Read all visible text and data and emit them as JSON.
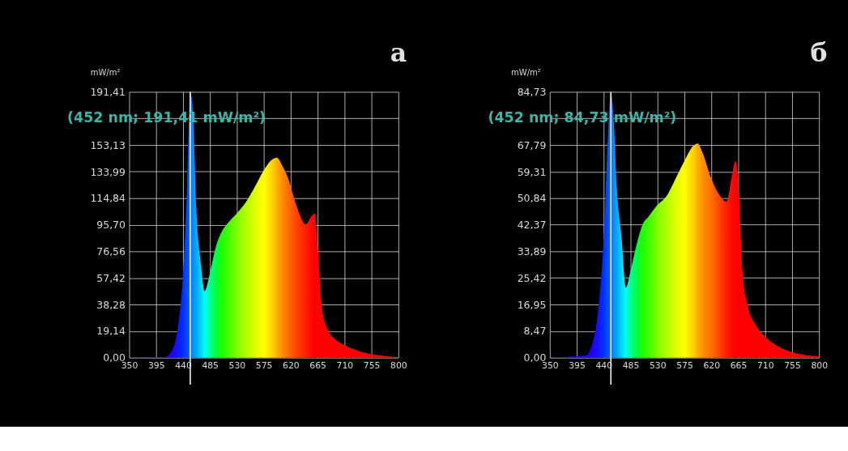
{
  "chart_data": [
    {
      "type": "area",
      "title": "а",
      "ylabel": "mW/m²",
      "xlim": [
        350,
        800
      ],
      "xticks": [
        350,
        395,
        440,
        485,
        530,
        575,
        620,
        665,
        710,
        755,
        800
      ],
      "ylim": [
        0,
        191.41
      ],
      "yticks": [
        {
          "value": 0,
          "label": "0,00"
        },
        {
          "value": 19.14,
          "label": "19,14"
        },
        {
          "value": 38.28,
          "label": "38,28"
        },
        {
          "value": 57.42,
          "label": "57,42"
        },
        {
          "value": 76.56,
          "label": "76,56"
        },
        {
          "value": 95.7,
          "label": "95,70"
        },
        {
          "value": 114.84,
          "label": "114,84"
        },
        {
          "value": 133.99,
          "label": "133,99"
        },
        {
          "value": 153.13,
          "label": "153,13"
        },
        {
          "value": 172.27,
          "label": null
        },
        {
          "value": 191.41,
          "label": "191,41"
        }
      ],
      "grid": true,
      "colors": [
        "#2000c0",
        "#2000ff",
        "#2000ff",
        "#1810ff",
        "#0030ff",
        "#0050ff",
        "#0070ff",
        "#0090ff",
        "#00a8ff",
        "#00d8ff",
        "#00ffff",
        "#00ff90",
        "#00ff40",
        "#20ff00",
        "#40ff00",
        "#80ff00",
        "#b0ff00",
        "#e0ff00",
        "#ffff00",
        "#ffd000",
        "#ffb000",
        "#ff9000",
        "#ff7000",
        "#ff4000",
        "#ff2000",
        "#ff0800",
        "#ff0000",
        "#ff0000",
        "#ff0000",
        "#ff0000",
        "#ff0000",
        "#ff0000",
        "#ff0000",
        "#ff0000",
        "#ff0000"
      ],
      "x": [
        350,
        410,
        420,
        430,
        440,
        447,
        452,
        457,
        462,
        470,
        476,
        485,
        495,
        505,
        515,
        530,
        545,
        560,
        575,
        590,
        597,
        605,
        615,
        630,
        645,
        655,
        660,
        665,
        672,
        680,
        695,
        710,
        740,
        770,
        800
      ],
      "values": [
        0,
        0.5,
        4,
        18,
        61,
        125,
        191.41,
        173,
        109,
        67,
        48,
        61,
        80,
        91,
        97,
        104,
        112,
        123,
        135,
        143,
        144,
        139,
        130,
        109,
        96,
        102,
        104,
        80,
        37,
        22,
        13,
        9,
        4,
        1.6,
        0.3
      ],
      "ref_lines": [
        {
          "axis": "x",
          "value": 452,
          "label": "(452 nm; 191,41 mW/m²)",
          "color": "#e8e8f0"
        }
      ]
    },
    {
      "type": "area",
      "title": "б",
      "ylabel": "mW/m²",
      "xlim": [
        350,
        800
      ],
      "xticks": [
        350,
        395,
        440,
        485,
        530,
        575,
        620,
        665,
        710,
        755,
        800
      ],
      "ylim": [
        0,
        84.73
      ],
      "yticks": [
        {
          "value": 0,
          "label": "0,00"
        },
        {
          "value": 8.47,
          "label": "8,47"
        },
        {
          "value": 16.95,
          "label": "16,95"
        },
        {
          "value": 25.42,
          "label": "25,42"
        },
        {
          "value": 33.89,
          "label": "33,89"
        },
        {
          "value": 42.37,
          "label": "42,37"
        },
        {
          "value": 50.84,
          "label": "50,84"
        },
        {
          "value": 59.31,
          "label": "59,31"
        },
        {
          "value": 67.79,
          "label": "67,79"
        },
        {
          "value": 76.26,
          "label": null
        },
        {
          "value": 84.73,
          "label": "84,73"
        }
      ],
      "grid": true,
      "colors": [
        "#2000c0",
        "#2000ff",
        "#2000ff",
        "#1810ff",
        "#0030ff",
        "#0050ff",
        "#0070ff",
        "#0090ff",
        "#00a8ff",
        "#00d8ff",
        "#00ffff",
        "#00ff90",
        "#00ff40",
        "#20ff00",
        "#40ff00",
        "#80ff00",
        "#b0ff00",
        "#e0ff00",
        "#ffff00",
        "#ffd000",
        "#ffb000",
        "#ff9000",
        "#ff7000",
        "#ff4000",
        "#ff2000",
        "#ff0800",
        "#ff0000",
        "#ff0000",
        "#ff0000",
        "#ff0000",
        "#ff0000",
        "#ff0000",
        "#ff0000",
        "#ff0000",
        "#ff0000"
      ],
      "x": [
        350,
        410,
        420,
        430,
        440,
        447,
        452,
        457,
        462,
        470,
        477,
        485,
        495,
        505,
        515,
        530,
        545,
        560,
        575,
        590,
        597,
        605,
        620,
        635,
        645,
        655,
        660,
        665,
        672,
        680,
        695,
        710,
        740,
        770,
        800
      ],
      "values": [
        0,
        0.7,
        3.9,
        13.7,
        38,
        70,
        84.73,
        75,
        54,
        38,
        22.4,
        27.7,
        36,
        42.4,
        45,
        48.7,
        51.5,
        57,
        62.7,
        67.6,
        68.3,
        65.5,
        57,
        51.5,
        49.7,
        58.5,
        62.7,
        55.7,
        27.7,
        17.2,
        10.2,
        6.7,
        2.8,
        1.1,
        0.4
      ],
      "ref_lines": [
        {
          "axis": "x",
          "value": 452,
          "label": "(452 nm; 84,73 mW/m²)",
          "color": "#e8e8f0"
        }
      ]
    }
  ]
}
